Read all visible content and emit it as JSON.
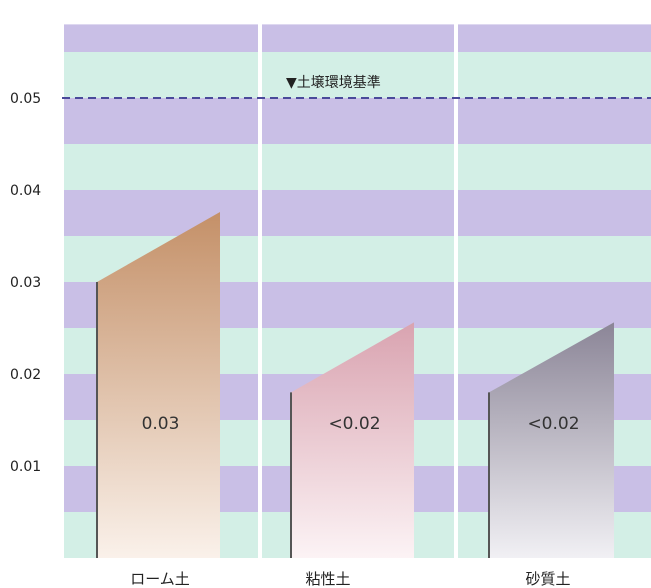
{
  "chart_data": {
    "type": "bar",
    "categories": [
      "ローム土",
      "粘性土",
      "砂質土"
    ],
    "values": [
      0.03,
      0.018,
      0.018
    ],
    "value_labels": [
      "0.03",
      "<0.02",
      "<0.02"
    ],
    "yticks": [
      "0.01",
      "0.02",
      "0.03",
      "0.04",
      "0.05"
    ],
    "ylim": [
      0,
      0.058
    ],
    "reference_line": {
      "value": 0.05,
      "label": "▼土壌環境基準",
      "color": "#4a4a9a"
    },
    "colors": {
      "band_purple": "#c9bfe6",
      "band_green": "#d3efe6",
      "bars": [
        [
          "#c49068",
          "#faf1ea"
        ],
        [
          "#d9a3b0",
          "#fcf3f5"
        ],
        [
          "#8b8597",
          "#f1f0f4"
        ]
      ]
    }
  }
}
